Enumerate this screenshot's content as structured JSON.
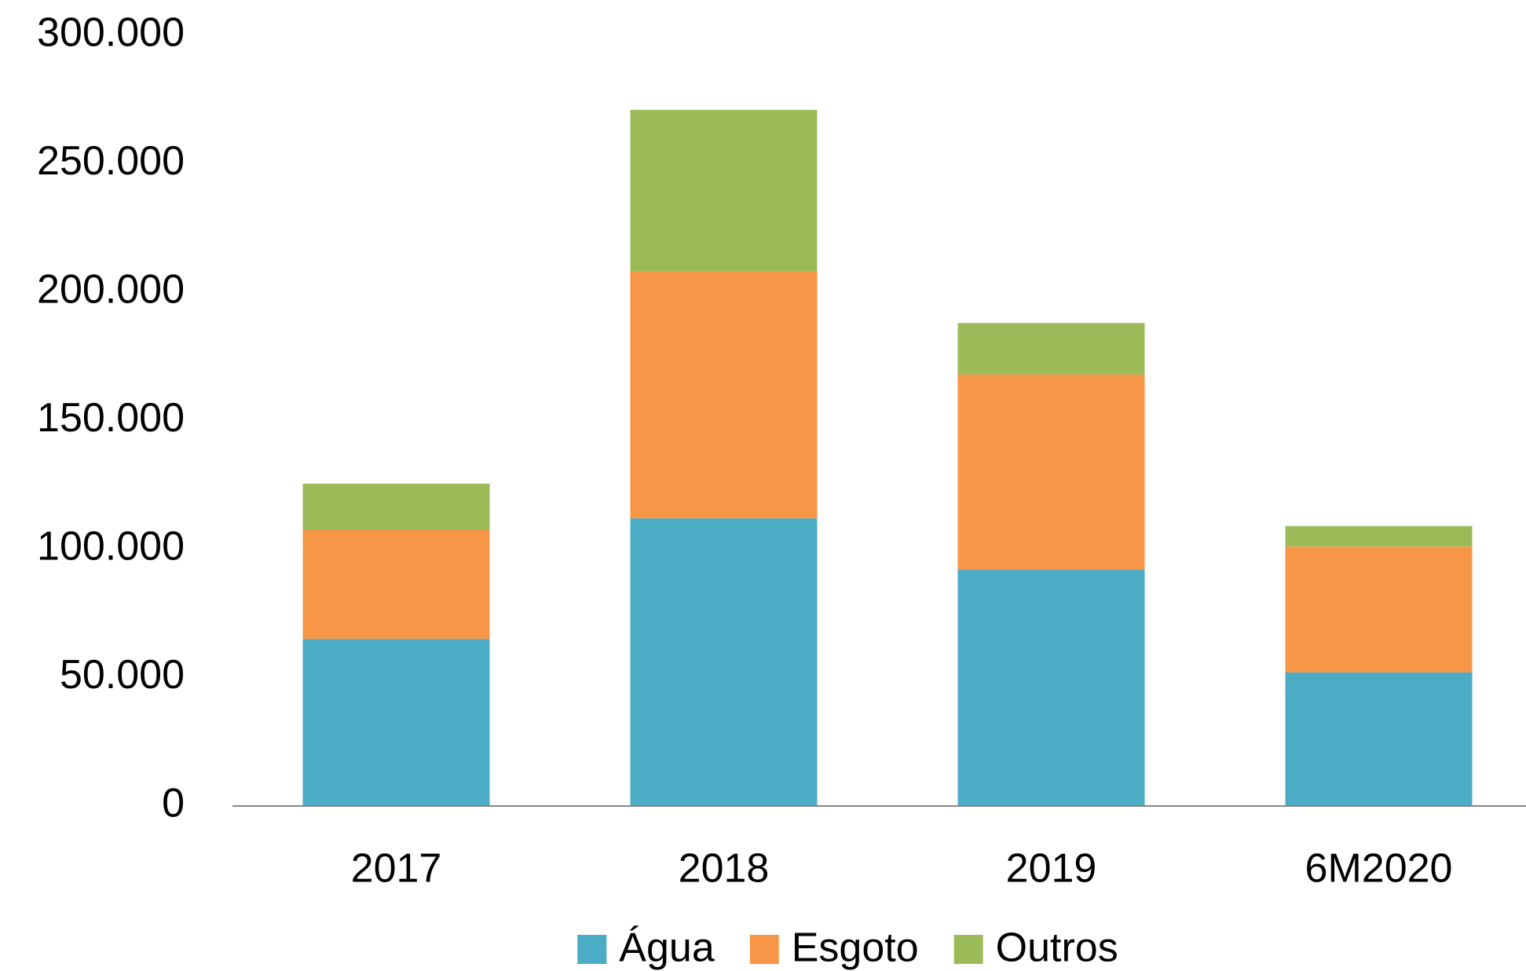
{
  "chart_data": {
    "type": "stacked_bar",
    "categories": [
      "2017",
      "2018",
      "2019",
      "6M2020"
    ],
    "series": [
      {
        "name": "Água",
        "color": "#4bacc6",
        "values": [
          65000,
          112000,
          92000,
          52000
        ]
      },
      {
        "name": "Esgoto",
        "color": "#f79646",
        "values": [
          42500,
          96000,
          76000,
          49000
        ]
      },
      {
        "name": "Outros",
        "color": "#9bbb59",
        "values": [
          18000,
          63000,
          20000,
          8000
        ]
      }
    ],
    "ylim": [
      0,
      300000
    ],
    "yticks": [
      0,
      {
        "value": 50000,
        "label": "50.000"
      },
      {
        "value": 100000,
        "label": "100.000"
      },
      {
        "value": 150000,
        "label": "150.000"
      },
      {
        "value": 200000,
        "label": "200.000"
      },
      {
        "value": 250000,
        "label": "250.000"
      },
      {
        "value": 300000,
        "label": "300.000"
      }
    ],
    "grid": false,
    "legend": "bottom"
  }
}
